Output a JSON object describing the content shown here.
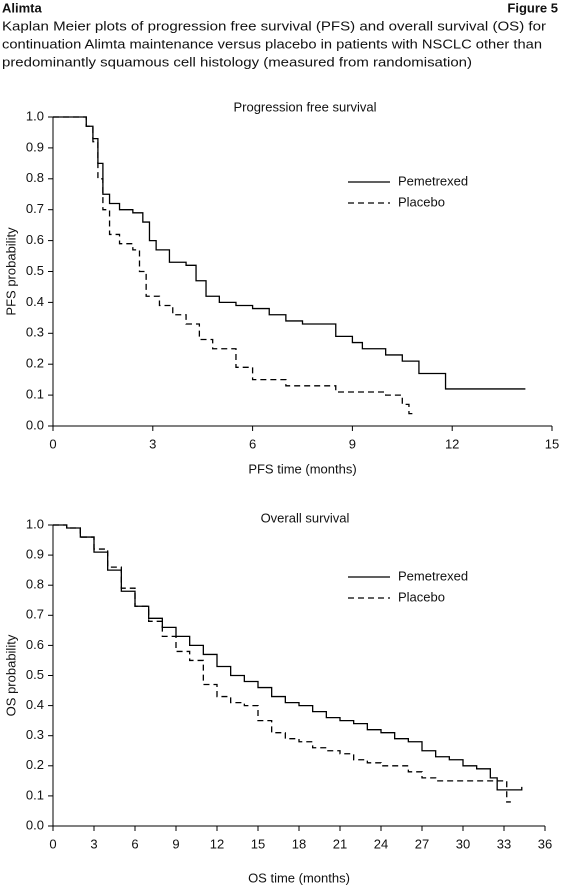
{
  "header": {
    "title": "Alimta",
    "figure": "Figure 5",
    "caption": [
      "Kaplan Meier plots of progression free survival (PFS) and overall survival (OS) for",
      "continuation Alimta maintenance versus placebo in patients with NSCLC other than",
      "predominantly squamous cell histology (measured from randomisation)"
    ]
  },
  "chart_data": [
    {
      "type": "line",
      "step": true,
      "title": "Progression free survival",
      "x_label": "PFS time (months)",
      "y_label": "PFS probability",
      "xlim": [
        0,
        15
      ],
      "xticks": [
        0,
        3,
        6,
        9,
        12,
        15
      ],
      "ylim": [
        0,
        1
      ],
      "yticks": [
        {
          "value": 0,
          "label": "0.0"
        },
        0.1,
        0.2,
        0.3,
        0.4,
        0.5,
        0.6,
        0.7,
        0.8,
        0.9,
        {
          "value": 1,
          "label": "1.0"
        }
      ],
      "legend": "upper right",
      "series": [
        {
          "name": "Pemetrexed",
          "color": "#000000",
          "dash": "solid",
          "x": [
            0,
            0.7,
            1.0,
            1.2,
            1.35,
            1.5,
            1.7,
            2.0,
            2.4,
            2.7,
            2.9,
            3.1,
            3.5,
            4.0,
            4.3,
            4.6,
            5.0,
            5.5,
            6.0,
            6.5,
            7.0,
            7.5,
            8.2,
            8.5,
            9.0,
            9.3,
            10.0,
            10.5,
            11.0,
            11.8,
            14.2
          ],
          "values": [
            1,
            1,
            0.97,
            0.93,
            0.85,
            0.75,
            0.72,
            0.7,
            0.69,
            0.66,
            0.6,
            0.57,
            0.53,
            0.52,
            0.47,
            0.42,
            0.4,
            0.39,
            0.38,
            0.36,
            0.34,
            0.33,
            0.33,
            0.29,
            0.27,
            0.25,
            0.23,
            0.21,
            0.17,
            0.12,
            0.12
          ]
        },
        {
          "name": "Placebo",
          "color": "#000000",
          "dash": "dashed",
          "x": [
            0,
            0.7,
            1.0,
            1.2,
            1.35,
            1.5,
            1.7,
            2.0,
            2.4,
            2.6,
            2.8,
            3.2,
            3.6,
            4.0,
            4.4,
            4.8,
            5.5,
            6.0,
            7.0,
            8.5,
            10.0,
            10.5,
            10.7,
            10.9
          ],
          "values": [
            1,
            1,
            0.97,
            0.92,
            0.8,
            0.7,
            0.62,
            0.59,
            0.57,
            0.5,
            0.42,
            0.39,
            0.36,
            0.33,
            0.28,
            0.25,
            0.19,
            0.15,
            0.13,
            0.11,
            0.1,
            0.07,
            0.04,
            0.04
          ]
        }
      ]
    },
    {
      "type": "line",
      "step": true,
      "title": "Overall survival",
      "x_label": "OS time (months)",
      "y_label": "OS probability",
      "xlim": [
        0,
        36
      ],
      "xticks": [
        0,
        3,
        6,
        9,
        12,
        15,
        18,
        21,
        24,
        27,
        30,
        33,
        36
      ],
      "ylim": [
        0,
        1
      ],
      "yticks": [
        {
          "value": 0,
          "label": "0.0"
        },
        0.1,
        0.2,
        0.3,
        0.4,
        0.5,
        0.6,
        0.7,
        0.8,
        0.9,
        {
          "value": 1,
          "label": "1.0"
        }
      ],
      "legend": "upper right",
      "series": [
        {
          "name": "Pemetrexed",
          "color": "#000000",
          "dash": "solid",
          "x": [
            0,
            1,
            2,
            3,
            4,
            5,
            6,
            7,
            8,
            9,
            10,
            11,
            12,
            13,
            14,
            15,
            16,
            17,
            18,
            19,
            20,
            21,
            22,
            23,
            24,
            25,
            26,
            27,
            28,
            29,
            30,
            31,
            32,
            32.5,
            34.3
          ],
          "values": [
            1,
            0.99,
            0.96,
            0.91,
            0.85,
            0.78,
            0.73,
            0.69,
            0.66,
            0.63,
            0.6,
            0.57,
            0.53,
            0.5,
            0.48,
            0.46,
            0.43,
            0.41,
            0.4,
            0.38,
            0.36,
            0.35,
            0.34,
            0.32,
            0.31,
            0.29,
            0.28,
            0.25,
            0.23,
            0.22,
            0.2,
            0.19,
            0.16,
            0.12,
            0.13
          ]
        },
        {
          "name": "Placebo",
          "color": "#000000",
          "dash": "dashed",
          "x": [
            0,
            1,
            2,
            3,
            4,
            5,
            6,
            7,
            8,
            9,
            10,
            11,
            12,
            13,
            14,
            15,
            16,
            17,
            18,
            19,
            20,
            21,
            22,
            23,
            24,
            25,
            26,
            27,
            28,
            30,
            33,
            33.2,
            33.5
          ],
          "values": [
            1,
            0.99,
            0.96,
            0.92,
            0.86,
            0.79,
            0.73,
            0.68,
            0.63,
            0.58,
            0.55,
            0.47,
            0.43,
            0.41,
            0.4,
            0.35,
            0.31,
            0.29,
            0.28,
            0.26,
            0.25,
            0.24,
            0.22,
            0.21,
            0.2,
            0.2,
            0.18,
            0.16,
            0.15,
            0.15,
            0.15,
            0.08,
            0.08
          ]
        }
      ]
    }
  ]
}
